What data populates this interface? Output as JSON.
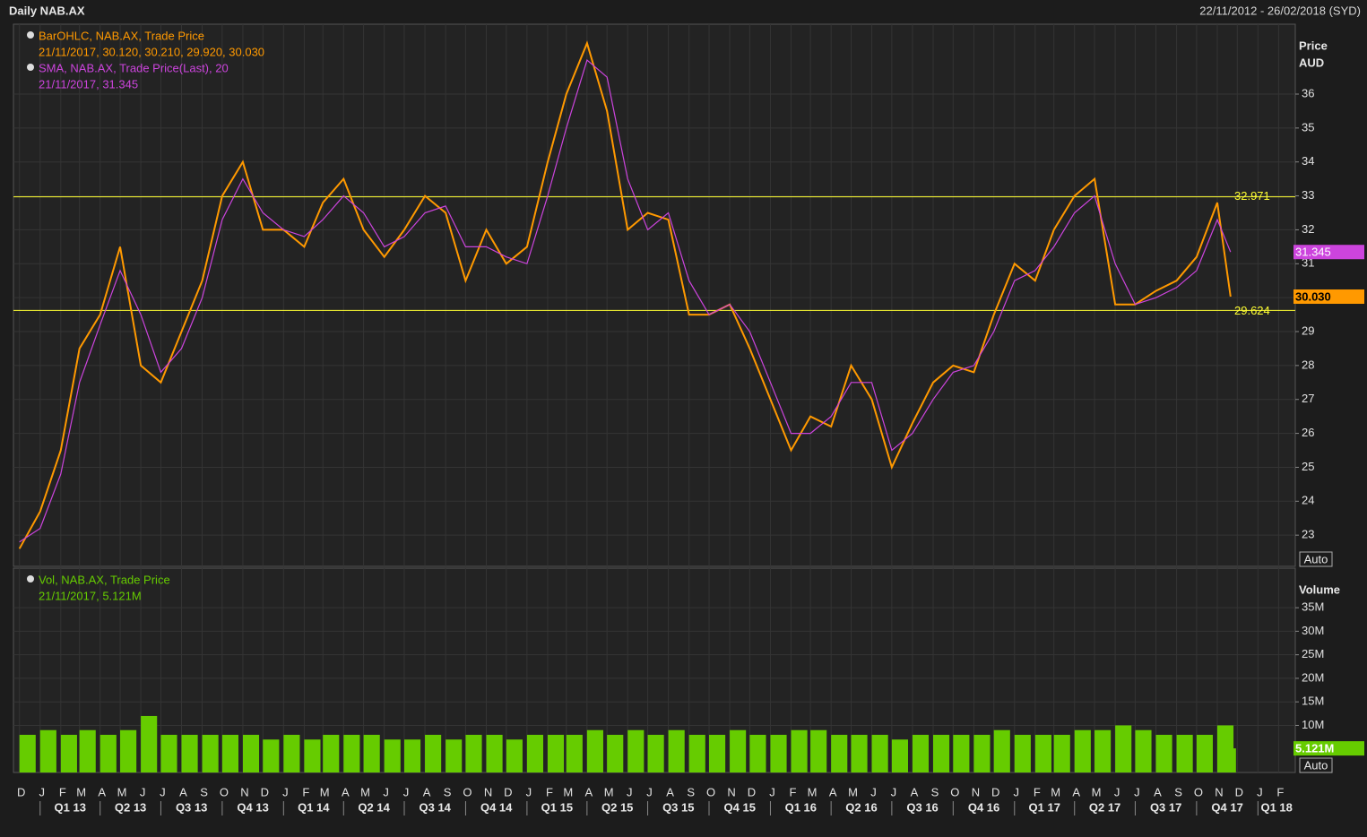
{
  "header": {
    "title": "Daily NAB.AX",
    "range": "22/11/2012 - 26/02/2018 (SYD)"
  },
  "x_axis": {
    "months": [
      {
        "value": "2012-12-01",
        "label": "D"
      },
      {
        "value": "2013-01-01",
        "label": "J"
      },
      {
        "value": "2013-02-01",
        "label": "F"
      },
      {
        "value": "2013-03-01",
        "label": "M"
      },
      {
        "value": "2013-04-01",
        "label": "A"
      },
      {
        "value": "2013-05-01",
        "label": "M"
      },
      {
        "value": "2013-06-01",
        "label": "J"
      },
      {
        "value": "2013-07-01",
        "label": "J"
      },
      {
        "value": "2013-08-01",
        "label": "A"
      },
      {
        "value": "2013-09-01",
        "label": "S"
      },
      {
        "value": "2013-10-01",
        "label": "O"
      },
      {
        "value": "2013-11-01",
        "label": "N"
      },
      {
        "value": "2013-12-01",
        "label": "D"
      },
      {
        "value": "2014-01-01",
        "label": "J"
      },
      {
        "value": "2014-02-01",
        "label": "F"
      },
      {
        "value": "2014-03-01",
        "label": "M"
      },
      {
        "value": "2014-04-01",
        "label": "A"
      },
      {
        "value": "2014-05-01",
        "label": "M"
      },
      {
        "value": "2014-06-01",
        "label": "J"
      },
      {
        "value": "2014-07-01",
        "label": "J"
      },
      {
        "value": "2014-08-01",
        "label": "A"
      },
      {
        "value": "2014-09-01",
        "label": "S"
      },
      {
        "value": "2014-10-01",
        "label": "O"
      },
      {
        "value": "2014-11-01",
        "label": "N"
      },
      {
        "value": "2014-12-01",
        "label": "D"
      },
      {
        "value": "2015-01-01",
        "label": "J"
      },
      {
        "value": "2015-02-01",
        "label": "F"
      },
      {
        "value": "2015-03-01",
        "label": "M"
      },
      {
        "value": "2015-04-01",
        "label": "A"
      },
      {
        "value": "2015-05-01",
        "label": "M"
      },
      {
        "value": "2015-06-01",
        "label": "J"
      },
      {
        "value": "2015-07-01",
        "label": "J"
      },
      {
        "value": "2015-08-01",
        "label": "A"
      },
      {
        "value": "2015-09-01",
        "label": "S"
      },
      {
        "value": "2015-10-01",
        "label": "O"
      },
      {
        "value": "2015-11-01",
        "label": "N"
      },
      {
        "value": "2015-12-01",
        "label": "D"
      },
      {
        "value": "2016-01-01",
        "label": "J"
      },
      {
        "value": "2016-02-01",
        "label": "F"
      },
      {
        "value": "2016-03-01",
        "label": "M"
      },
      {
        "value": "2016-04-01",
        "label": "A"
      },
      {
        "value": "2016-05-01",
        "label": "M"
      },
      {
        "value": "2016-06-01",
        "label": "J"
      },
      {
        "value": "2016-07-01",
        "label": "J"
      },
      {
        "value": "2016-08-01",
        "label": "A"
      },
      {
        "value": "2016-09-01",
        "label": "S"
      },
      {
        "value": "2016-10-01",
        "label": "O"
      },
      {
        "value": "2016-11-01",
        "label": "N"
      },
      {
        "value": "2016-12-01",
        "label": "D"
      },
      {
        "value": "2017-01-01",
        "label": "J"
      },
      {
        "value": "2017-02-01",
        "label": "F"
      },
      {
        "value": "2017-03-01",
        "label": "M"
      },
      {
        "value": "2017-04-01",
        "label": "A"
      },
      {
        "value": "2017-05-01",
        "label": "M"
      },
      {
        "value": "2017-06-01",
        "label": "J"
      },
      {
        "value": "2017-07-01",
        "label": "J"
      },
      {
        "value": "2017-08-01",
        "label": "A"
      },
      {
        "value": "2017-09-01",
        "label": "S"
      },
      {
        "value": "2017-10-01",
        "label": "O"
      },
      {
        "value": "2017-11-01",
        "label": "N"
      },
      {
        "value": "2017-12-01",
        "label": "D"
      },
      {
        "value": "2018-01-01",
        "label": "J"
      },
      {
        "value": "2018-02-01",
        "label": "F"
      }
    ],
    "quarters": [
      {
        "value": "2013-01-01",
        "label": "Q1 13"
      },
      {
        "value": "2013-04-01",
        "label": "Q2 13"
      },
      {
        "value": "2013-07-01",
        "label": "Q3 13"
      },
      {
        "value": "2013-10-01",
        "label": "Q4 13"
      },
      {
        "value": "2014-01-01",
        "label": "Q1 14"
      },
      {
        "value": "2014-04-01",
        "label": "Q2 14"
      },
      {
        "value": "2014-07-01",
        "label": "Q3 14"
      },
      {
        "value": "2014-10-01",
        "label": "Q4 14"
      },
      {
        "value": "2015-01-01",
        "label": "Q1 15"
      },
      {
        "value": "2015-04-01",
        "label": "Q2 15"
      },
      {
        "value": "2015-07-01",
        "label": "Q3 15"
      },
      {
        "value": "2015-10-01",
        "label": "Q4 15"
      },
      {
        "value": "2016-01-01",
        "label": "Q1 16"
      },
      {
        "value": "2016-04-01",
        "label": "Q2 16"
      },
      {
        "value": "2016-07-01",
        "label": "Q3 16"
      },
      {
        "value": "2016-10-01",
        "label": "Q4 16"
      },
      {
        "value": "2017-01-01",
        "label": "Q1 17"
      },
      {
        "value": "2017-04-01",
        "label": "Q2 17"
      },
      {
        "value": "2017-07-01",
        "label": "Q3 17"
      },
      {
        "value": "2017-10-01",
        "label": "Q4 17"
      },
      {
        "value": "2018-01-01",
        "label": "Q1 18"
      }
    ]
  },
  "chart_data": [
    {
      "type": "line",
      "axis_title": [
        "Price",
        "AUD"
      ],
      "x": [
        "2012-12-01",
        "2013-01-01",
        "2013-02-01",
        "2013-03-01",
        "2013-04-01",
        "2013-05-01",
        "2013-06-01",
        "2013-07-01",
        "2013-08-01",
        "2013-09-01",
        "2013-10-01",
        "2013-11-01",
        "2013-12-01",
        "2014-01-01",
        "2014-02-01",
        "2014-03-01",
        "2014-04-01",
        "2014-05-01",
        "2014-06-01",
        "2014-07-01",
        "2014-08-01",
        "2014-09-01",
        "2014-10-01",
        "2014-11-01",
        "2014-12-01",
        "2015-01-01",
        "2015-02-01",
        "2015-03-01",
        "2015-04-01",
        "2015-05-01",
        "2015-06-01",
        "2015-07-01",
        "2015-08-01",
        "2015-09-01",
        "2015-10-01",
        "2015-11-01",
        "2015-12-01",
        "2016-01-01",
        "2016-02-01",
        "2016-03-01",
        "2016-04-01",
        "2016-05-01",
        "2016-06-01",
        "2016-07-01",
        "2016-08-01",
        "2016-09-01",
        "2016-10-01",
        "2016-11-01",
        "2016-12-01",
        "2017-01-01",
        "2017-02-01",
        "2017-03-01",
        "2017-04-01",
        "2017-05-01",
        "2017-06-01",
        "2017-07-01",
        "2017-08-01",
        "2017-09-01",
        "2017-10-01",
        "2017-11-01",
        "2017-11-21"
      ],
      "xlim": [
        "2012-11-22",
        "2018-02-26"
      ],
      "ylim": [
        22.08,
        38.06
      ],
      "yticks": [
        23,
        24,
        25,
        26,
        27,
        28,
        29,
        30,
        31,
        32,
        33,
        34,
        35,
        36
      ],
      "grid": true,
      "series": [
        {
          "name": "BarOHLC, NAB.AX, Trade Price",
          "detail": "21/11/2017, 30.120, 30.210, 29.920, 30.030",
          "color": "#ff9900",
          "values": [
            22.6,
            23.7,
            25.5,
            28.5,
            29.5,
            31.5,
            28.0,
            27.5,
            29.0,
            30.5,
            33.0,
            34.0,
            32.0,
            32.0,
            31.5,
            32.8,
            33.5,
            32.0,
            31.2,
            32.0,
            33.0,
            32.5,
            30.5,
            32.0,
            31.0,
            31.5,
            34.0,
            36.0,
            37.5,
            35.5,
            32.0,
            32.5,
            32.3,
            29.5,
            29.5,
            29.8,
            28.5,
            27.0,
            25.5,
            26.5,
            26.2,
            28.0,
            27.0,
            25.0,
            26.3,
            27.5,
            28.0,
            27.8,
            29.5,
            31.0,
            30.5,
            32.0,
            33.0,
            33.5,
            29.8,
            29.8,
            30.2,
            30.5,
            31.2,
            32.8,
            30.03
          ],
          "last": {
            "value": 30.03,
            "label": "30.030"
          }
        },
        {
          "name": "SMA, NAB.AX, Trade Price(Last),  20",
          "detail": "21/11/2017, 31.345",
          "color": "#cc44dd",
          "values": [
            22.8,
            23.2,
            24.8,
            27.5,
            29.2,
            30.8,
            29.5,
            27.8,
            28.5,
            30.0,
            32.3,
            33.5,
            32.5,
            32.0,
            31.8,
            32.3,
            33.0,
            32.5,
            31.5,
            31.8,
            32.5,
            32.7,
            31.5,
            31.5,
            31.2,
            31.0,
            33.0,
            35.0,
            37.0,
            36.5,
            33.5,
            32.0,
            32.5,
            30.5,
            29.5,
            29.8,
            29.0,
            27.5,
            26.0,
            26.0,
            26.5,
            27.5,
            27.5,
            25.5,
            26.0,
            27.0,
            27.8,
            28.0,
            29.0,
            30.5,
            30.8,
            31.5,
            32.5,
            33.0,
            31.0,
            29.8,
            30.0,
            30.3,
            30.8,
            32.3,
            31.345
          ],
          "last": {
            "value": 31.345,
            "label": "31.345"
          }
        }
      ],
      "hlines": [
        {
          "value": 32.971,
          "label": "32.971",
          "color": "#ffff33"
        },
        {
          "value": 29.624,
          "label": "29.624",
          "color": "#ffff33"
        }
      ],
      "scale_button": "Auto"
    },
    {
      "type": "bar",
      "axis_title": [
        "Volume"
      ],
      "x": [
        "2012-12-01",
        "2013-01-01",
        "2013-02-01",
        "2013-03-01",
        "2013-04-01",
        "2013-05-01",
        "2013-06-01",
        "2013-07-01",
        "2013-08-01",
        "2013-09-01",
        "2013-10-01",
        "2013-11-01",
        "2013-12-01",
        "2014-01-01",
        "2014-02-01",
        "2014-03-01",
        "2014-04-01",
        "2014-05-01",
        "2014-06-01",
        "2014-07-01",
        "2014-08-01",
        "2014-09-01",
        "2014-10-01",
        "2014-11-01",
        "2014-12-01",
        "2015-01-01",
        "2015-02-01",
        "2015-03-01",
        "2015-04-01",
        "2015-05-01",
        "2015-06-01",
        "2015-07-01",
        "2015-08-01",
        "2015-09-01",
        "2015-10-01",
        "2015-11-01",
        "2015-12-01",
        "2016-01-01",
        "2016-02-01",
        "2016-03-01",
        "2016-04-01",
        "2016-05-01",
        "2016-06-01",
        "2016-07-01",
        "2016-08-01",
        "2016-09-01",
        "2016-10-01",
        "2016-11-01",
        "2016-12-01",
        "2017-01-01",
        "2017-02-01",
        "2017-03-01",
        "2017-04-01",
        "2017-05-01",
        "2017-06-01",
        "2017-07-01",
        "2017-08-01",
        "2017-09-01",
        "2017-10-01",
        "2017-11-01",
        "2017-11-21"
      ],
      "ylim": [
        0,
        43.4
      ],
      "yticks": [
        {
          "value": 10,
          "label": "10M"
        },
        {
          "value": 15,
          "label": "15M"
        },
        {
          "value": 20,
          "label": "20M"
        },
        {
          "value": 25,
          "label": "25M"
        },
        {
          "value": 30,
          "label": "30M"
        },
        {
          "value": 35,
          "label": "35M"
        }
      ],
      "grid": true,
      "series": [
        {
          "name": "Vol, NAB.AX, Trade Price",
          "detail": "21/11/2017, 5.121M",
          "color": "#66cc00",
          "values": [
            8,
            9,
            8,
            9,
            8,
            9,
            12,
            8,
            8,
            8,
            8,
            8,
            7,
            8,
            7,
            8,
            8,
            8,
            7,
            7,
            8,
            7,
            8,
            8,
            7,
            8,
            8,
            8,
            9,
            8,
            9,
            8,
            9,
            8,
            8,
            9,
            8,
            8,
            9,
            9,
            8,
            8,
            8,
            7,
            8,
            8,
            8,
            8,
            9,
            8,
            8,
            8,
            9,
            9,
            10,
            9,
            8,
            8,
            8,
            10,
            5.121
          ],
          "last": {
            "value": 5.121,
            "label": "5.121M"
          }
        }
      ],
      "scale_button": "Auto"
    }
  ]
}
